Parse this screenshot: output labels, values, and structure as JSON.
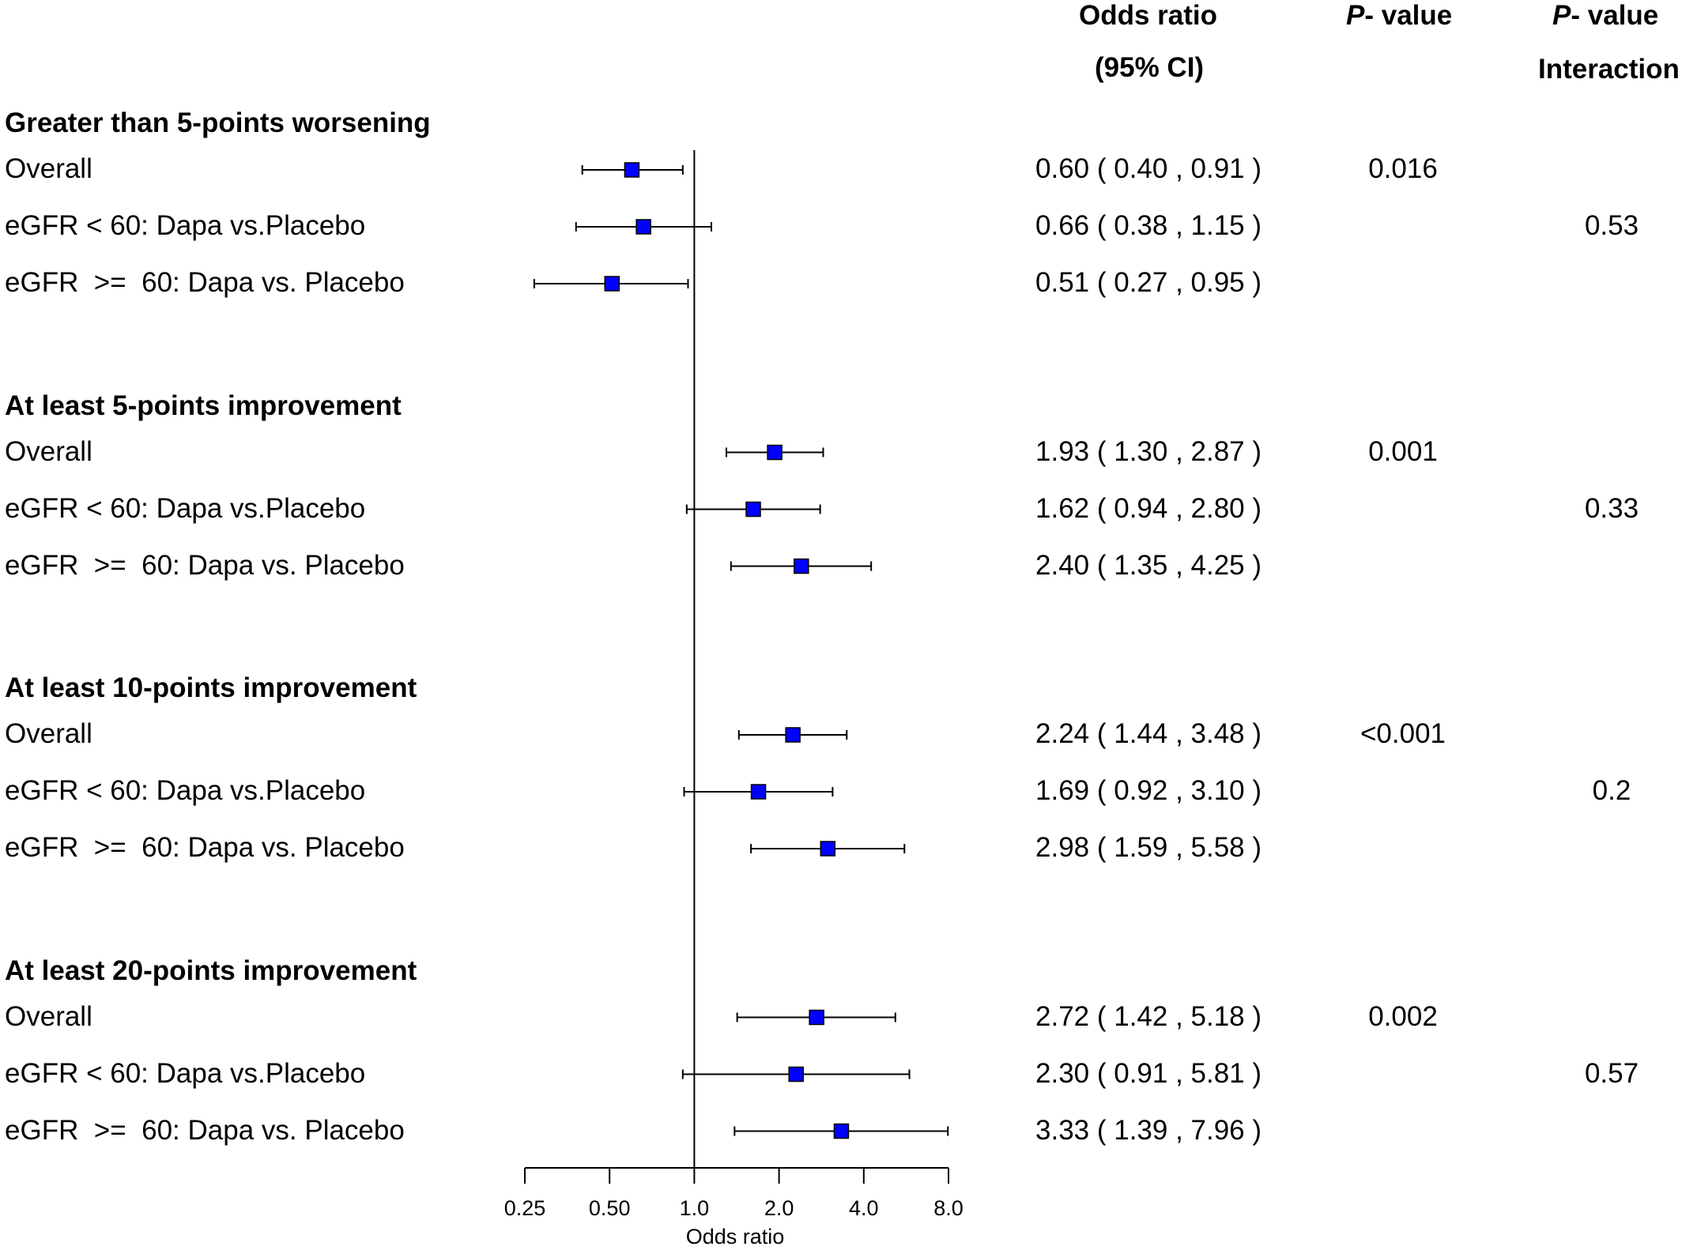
{
  "headers": {
    "or_line1": "Odds ratio",
    "or_line2": "(95% CI)",
    "p_italic": "P",
    "p_rest": "- value",
    "pint_italic": "P",
    "pint_rest": "- value",
    "pint_line2": "Interaction"
  },
  "chart_data": {
    "type": "forest",
    "xlabel": "Odds ratio",
    "x_scale": "log2",
    "xlim": [
      0.25,
      8.0
    ],
    "xticks": [
      "0.25",
      "0.50",
      "1.0",
      "2.0",
      "4.0",
      "8.0"
    ],
    "reference_line": 1.0,
    "marker_color": "#0000ff",
    "sections": [
      {
        "title": "Greater than 5-points worsening",
        "rows": [
          {
            "label": "Overall",
            "or": 0.6,
            "lo": 0.4,
            "hi": 0.91,
            "ci_text": "0.60 ( 0.40 , 0.91 )",
            "p": "0.016",
            "p_int": ""
          },
          {
            "label": "eGFR < 60: Dapa vs.Placebo",
            "or": 0.66,
            "lo": 0.38,
            "hi": 1.15,
            "ci_text": "0.66 ( 0.38 , 1.15 )",
            "p": "",
            "p_int": "0.53"
          },
          {
            "label": "eGFR  >=  60: Dapa vs. Placebo",
            "or": 0.51,
            "lo": 0.27,
            "hi": 0.95,
            "ci_text": "0.51 ( 0.27 , 0.95 )",
            "p": "",
            "p_int": ""
          }
        ]
      },
      {
        "title": "At least 5-points improvement",
        "rows": [
          {
            "label": "Overall",
            "or": 1.93,
            "lo": 1.3,
            "hi": 2.87,
            "ci_text": "1.93 ( 1.30 , 2.87 )",
            "p": "0.001",
            "p_int": ""
          },
          {
            "label": "eGFR < 60: Dapa vs.Placebo",
            "or": 1.62,
            "lo": 0.94,
            "hi": 2.8,
            "ci_text": "1.62 ( 0.94 , 2.80 )",
            "p": "",
            "p_int": "0.33"
          },
          {
            "label": "eGFR  >=  60: Dapa vs. Placebo",
            "or": 2.4,
            "lo": 1.35,
            "hi": 4.25,
            "ci_text": "2.40 ( 1.35 , 4.25 )",
            "p": "",
            "p_int": ""
          }
        ]
      },
      {
        "title": "At least 10-points improvement",
        "rows": [
          {
            "label": "Overall",
            "or": 2.24,
            "lo": 1.44,
            "hi": 3.48,
            "ci_text": "2.24 ( 1.44 , 3.48 )",
            "p": "<0.001",
            "p_int": ""
          },
          {
            "label": "eGFR < 60: Dapa vs.Placebo",
            "or": 1.69,
            "lo": 0.92,
            "hi": 3.1,
            "ci_text": "1.69 ( 0.92 , 3.10 )",
            "p": "",
            "p_int": "0.2"
          },
          {
            "label": "eGFR  >=  60: Dapa vs. Placebo",
            "or": 2.98,
            "lo": 1.59,
            "hi": 5.58,
            "ci_text": "2.98 ( 1.59 , 5.58 )",
            "p": "",
            "p_int": ""
          }
        ]
      },
      {
        "title": "At least 20-points improvement",
        "rows": [
          {
            "label": "Overall",
            "or": 2.72,
            "lo": 1.42,
            "hi": 5.18,
            "ci_text": "2.72 ( 1.42 , 5.18 )",
            "p": "0.002",
            "p_int": ""
          },
          {
            "label": "eGFR < 60: Dapa vs.Placebo",
            "or": 2.3,
            "lo": 0.91,
            "hi": 5.81,
            "ci_text": "2.30 ( 0.91 , 5.81 )",
            "p": "",
            "p_int": "0.57"
          },
          {
            "label": "eGFR  >=  60: Dapa vs. Placebo",
            "or": 3.33,
            "lo": 1.39,
            "hi": 7.96,
            "ci_text": "3.33 ( 1.39 , 7.96 )",
            "p": "",
            "p_int": ""
          }
        ]
      }
    ]
  }
}
